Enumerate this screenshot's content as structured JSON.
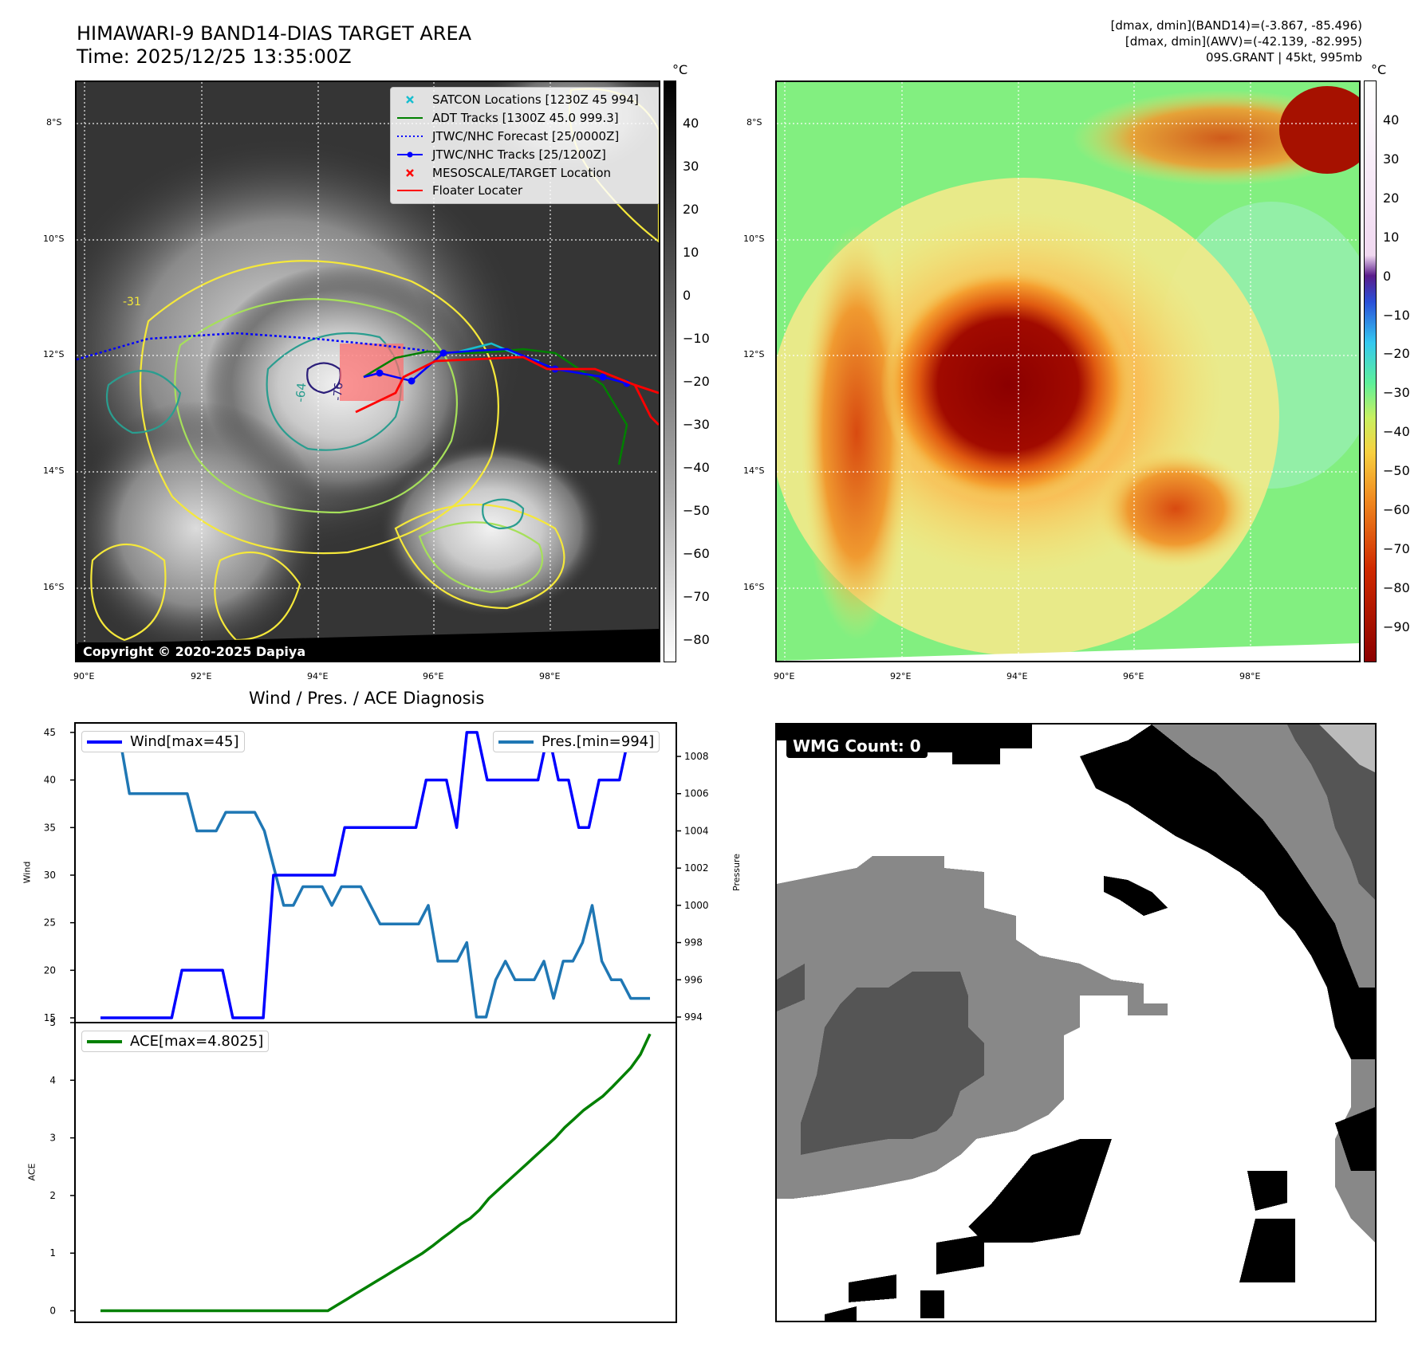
{
  "header": {
    "title_line1": "HIMAWARI-9 BAND14-DIAS TARGET AREA",
    "title_line2": "Time: 2025/12/25 13:35:00Z",
    "info_line1": "[dmax, dmin](BAND14)=(-3.867, -85.496)",
    "info_line2": "[dmax, dmin](AWV)=(-42.139, -82.995)",
    "info_line3": "09S.GRANT | 45kt, 995mb"
  },
  "map_axes": {
    "lat_labels": [
      "8°S",
      "10°S",
      "12°S",
      "14°S",
      "16°S"
    ],
    "lon_labels": [
      "90°E",
      "92°E",
      "94°E",
      "96°E",
      "98°E"
    ]
  },
  "ir_panel": {
    "legend": [
      {
        "label": "SATCON Locations [1230Z 45 994]",
        "icon": "x-marker-icon",
        "color": "#17becf"
      },
      {
        "label": "ADT Tracks [1300Z 45.0 999.3]",
        "icon": "solid-line-icon",
        "color": "#008000"
      },
      {
        "label": "JTWC/NHC Forecast [25/0000Z]",
        "icon": "dotted-line-icon",
        "color": "#0000ff"
      },
      {
        "label": "JTWC/NHC Tracks [25/1200Z]",
        "icon": "line-dot-icon",
        "color": "#0000ff"
      },
      {
        "label": "MESOSCALE/TARGET Location",
        "icon": "x-marker-icon",
        "color": "#ff0000"
      },
      {
        "label": "Floater Locater",
        "icon": "solid-line-icon",
        "color": "#ff0000"
      }
    ],
    "copyright": "Copyright © 2020-2025 Dapiya",
    "contour_labels": [
      "-31",
      "-64",
      "-76"
    ],
    "colorbar": {
      "unit": "°C",
      "ticks": [
        "40",
        "30",
        "20",
        "10",
        "0",
        "−10",
        "−20",
        "−30",
        "−40",
        "−50",
        "−60",
        "−70",
        "−80"
      ]
    }
  },
  "awv_panel": {
    "colorbar": {
      "unit": "°C",
      "ticks": [
        "40",
        "30",
        "20",
        "10",
        "0",
        "−10",
        "−20",
        "−30",
        "−40",
        "−50",
        "−60",
        "−70",
        "−80",
        "−90"
      ]
    }
  },
  "diagnosis": {
    "title": "Wind / Pres. / ACE Diagnosis",
    "wind_legend": "Wind[max=45]",
    "pres_legend": "Pres.[min=994]",
    "ace_legend": "ACE[max=4.8025]",
    "wind_ylabel": "Wind",
    "pres_ylabel": "Pressure",
    "ace_ylabel": "ACE",
    "wind_ticks": [
      "45",
      "40",
      "35",
      "30",
      "25",
      "20",
      "15"
    ],
    "pres_ticks": [
      "1008",
      "1006",
      "1004",
      "1002",
      "1000",
      "998",
      "996",
      "994"
    ],
    "ace_ticks": [
      "5",
      "4",
      "3",
      "2",
      "1",
      "0"
    ]
  },
  "wmg_panel": {
    "label": "WMG Count: 0"
  },
  "colors": {
    "wind": "#0000ff",
    "pressure": "#1f77b4",
    "ace": "#008000"
  },
  "chart_data": [
    {
      "type": "line",
      "title": "Wind / Pres. / ACE Diagnosis",
      "ylabel": "Wind",
      "ylim": [
        14.5,
        46
      ],
      "series": [
        {
          "name": "Wind[max=45]",
          "values": [
            15,
            15,
            15,
            15,
            15,
            15,
            15,
            15,
            20,
            20,
            20,
            20,
            20,
            15,
            15,
            15,
            15,
            30,
            30,
            30,
            30,
            30,
            30,
            30,
            35,
            35,
            35,
            35,
            35,
            35,
            35,
            35,
            40,
            40,
            40,
            35,
            45,
            45,
            40,
            40,
            40,
            40,
            40,
            40,
            45,
            40,
            40,
            35,
            35,
            40,
            40,
            40,
            45,
            45,
            45
          ]
        }
      ]
    },
    {
      "type": "line",
      "ylabel": "Pressure",
      "ylim": [
        993.7,
        1009.8
      ],
      "series": [
        {
          "name": "Pres.[min=994]",
          "values": [
            1009,
            1009,
            1009,
            1006,
            1006,
            1006,
            1006,
            1006,
            1006,
            1006,
            1004,
            1004,
            1004,
            1005,
            1005,
            1005,
            1005,
            1004,
            1002,
            1000,
            1000,
            1001,
            1001,
            1001,
            1000,
            1001,
            1001,
            1001,
            1000,
            999,
            999,
            999,
            999,
            999,
            1000,
            997,
            997,
            997,
            998,
            994,
            994,
            996,
            997,
            996,
            996,
            996,
            997,
            995,
            997,
            997,
            998,
            1000,
            997,
            996,
            996,
            995,
            995,
            995
          ]
        }
      ]
    },
    {
      "type": "line",
      "ylabel": "ACE",
      "ylim": [
        -0.2,
        5.0
      ],
      "series": [
        {
          "name": "ACE[max=4.8025]",
          "values": [
            0,
            0,
            0,
            0,
            0,
            0,
            0,
            0,
            0,
            0,
            0,
            0,
            0,
            0,
            0,
            0,
            0,
            0,
            0,
            0,
            0,
            0,
            0,
            0,
            0,
            0.1,
            0.2,
            0.3,
            0.4,
            0.5,
            0.6,
            0.7,
            0.8,
            0.9,
            1.0,
            1.12,
            1.25,
            1.37,
            1.5,
            1.6,
            1.75,
            1.95,
            2.1,
            2.25,
            2.4,
            2.55,
            2.7,
            2.85,
            3.0,
            3.18,
            3.33,
            3.48,
            3.6,
            3.72,
            3.88,
            4.05,
            4.22,
            4.45,
            4.8025
          ]
        }
      ]
    }
  ]
}
